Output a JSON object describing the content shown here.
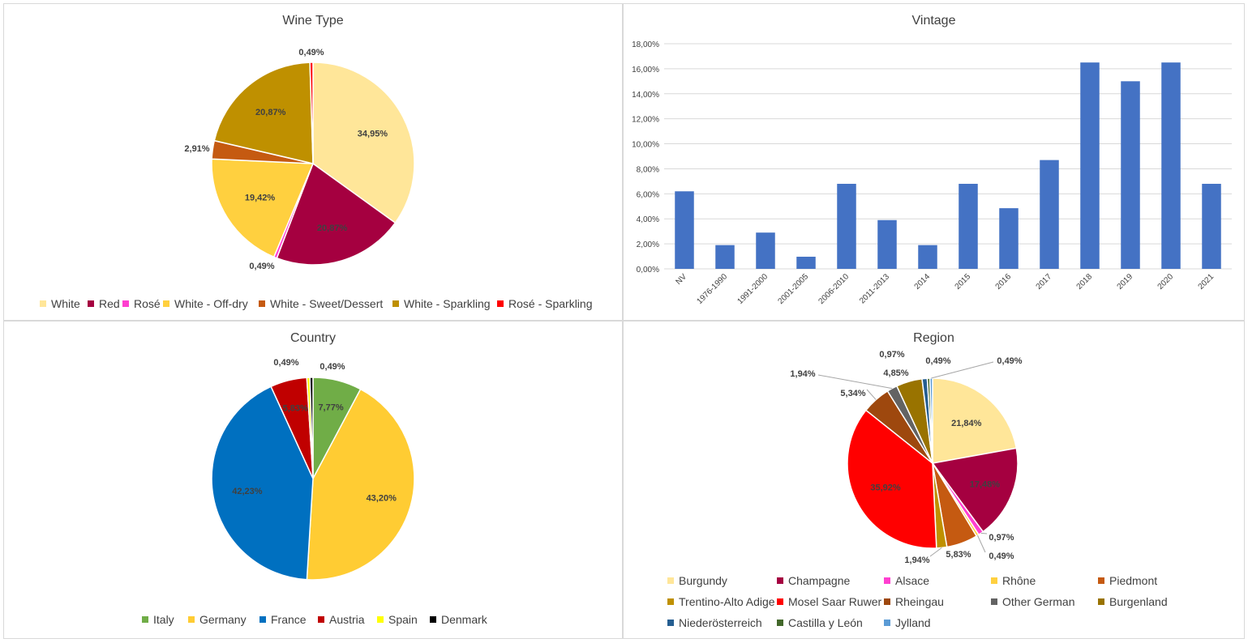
{
  "chart_data": [
    {
      "id": "wine",
      "type": "pie",
      "title": "Wine Type",
      "categories": [
        "White",
        "Red",
        "Rosé",
        "White - Off-dry",
        "White - Sweet/Dessert",
        "White - Sparkling",
        "Rosé - Sparkling"
      ],
      "values": [
        34.95,
        20.87,
        0.49,
        19.42,
        2.91,
        20.87,
        0.49
      ],
      "labels": [
        "34,95%",
        "20,87%",
        "0,49%",
        "19,42%",
        "2,91%",
        "20,87%",
        "0,49%"
      ],
      "colors": [
        "#ffe699",
        "#a50040",
        "#ff3fd0",
        "#ffd03f",
        "#c55a11",
        "#bf9000",
        "#ff0000"
      ],
      "legend_position": "bottom"
    },
    {
      "id": "vintage",
      "type": "bar",
      "title": "Vintage",
      "categories": [
        "NV",
        "1976-1990",
        "1991-2000",
        "2001-2005",
        "2006-2010",
        "2011-2013",
        "2014",
        "2015",
        "2016",
        "2017",
        "2018",
        "2019",
        "2020",
        "2021"
      ],
      "values": [
        6.2,
        1.9,
        2.9,
        0.97,
        6.8,
        3.9,
        1.9,
        6.8,
        4.85,
        8.7,
        16.5,
        15.0,
        16.5,
        6.8
      ],
      "ylim": [
        0,
        18
      ],
      "yticks": [
        "0,00%",
        "2,00%",
        "4,00%",
        "6,00%",
        "8,00%",
        "10,00%",
        "12,00%",
        "14,00%",
        "16,00%",
        "18,00%"
      ],
      "color": "#4472c4",
      "grid": true
    },
    {
      "id": "country",
      "type": "pie",
      "title": "Country",
      "categories": [
        "Italy",
        "Germany",
        "France",
        "Austria",
        "Spain",
        "Denmark"
      ],
      "values": [
        7.77,
        43.2,
        42.23,
        5.83,
        0.49,
        0.49
      ],
      "labels": [
        "7,77%",
        "43,20%",
        "42,23%",
        "5,83%",
        "0,49%",
        "0,49%"
      ],
      "colors": [
        "#70ad47",
        "#ffcc33",
        "#0070c0",
        "#c00000",
        "#ffff00",
        "#000000"
      ],
      "legend_position": "bottom"
    },
    {
      "id": "region",
      "type": "pie",
      "title": "Region",
      "categories": [
        "Burgundy",
        "Champagne",
        "Alsace",
        "Rhône",
        "Piedmont",
        "Trentino-Alto Adige",
        "Mosel Saar Ruwer",
        "Rheingau",
        "Other German",
        "Burgenland",
        "Niederösterreich",
        "Castilla y León",
        "Jylland"
      ],
      "values": [
        21.84,
        17.48,
        0.97,
        0.49,
        5.83,
        1.94,
        35.92,
        5.34,
        1.94,
        4.85,
        0.97,
        0.49,
        0.49
      ],
      "labels": [
        "21,84%",
        "17,48%",
        "0,97%",
        "0,49%",
        "5,83%",
        "1,94%",
        "35,92%",
        "5,34%",
        "1,94%",
        "4,85%",
        "0,97%",
        "0,49%",
        "0,49%"
      ],
      "colors": [
        "#ffe699",
        "#a50040",
        "#ff3fd0",
        "#ffd03f",
        "#c55a11",
        "#bf9000",
        "#ff0000",
        "#9e480e",
        "#636363",
        "#997300",
        "#255e91",
        "#43682b",
        "#5b9bd5"
      ],
      "legend_position": "bottom"
    }
  ]
}
